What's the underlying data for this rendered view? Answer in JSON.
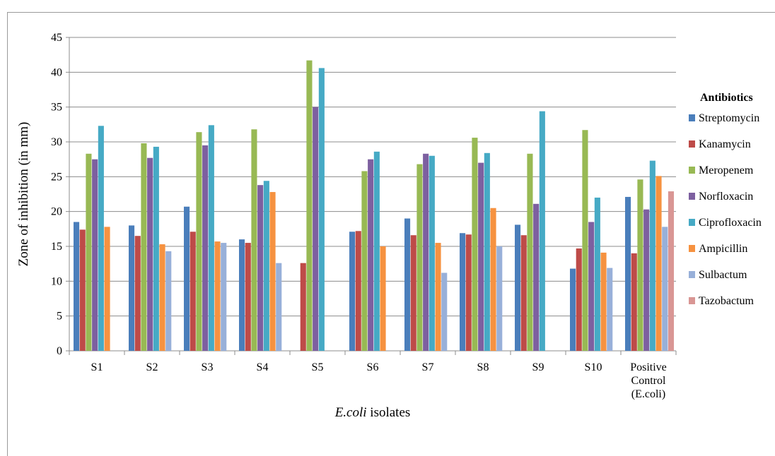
{
  "chart_data": {
    "type": "bar",
    "title": "",
    "ylabel": "Zone of inhibition (in mm)",
    "xlabel_italic": "E.coli",
    "xlabel_rest": " isolates",
    "ylim": [
      0,
      45
    ],
    "ytick_step": 5,
    "grid": true,
    "legend_position": "right",
    "legend_title": "Antibiotics",
    "categories": [
      "S1",
      "S2",
      "S3",
      "S4",
      "S5",
      "S6",
      "S7",
      "S8",
      "S9",
      "S10",
      "Positive\nControl\n(E.coli)"
    ],
    "series": [
      {
        "name": "Streptomycin",
        "color": "#4a7ebb",
        "values": [
          18.5,
          18.0,
          20.7,
          16.0,
          0,
          17.1,
          19.0,
          16.9,
          18.1,
          11.8,
          22.1
        ]
      },
      {
        "name": "Kanamycin",
        "color": "#be4b48",
        "values": [
          17.4,
          16.5,
          17.1,
          15.5,
          12.6,
          17.2,
          16.6,
          16.7,
          16.6,
          14.7,
          14.0
        ]
      },
      {
        "name": "Meropenem",
        "color": "#98b954",
        "values": [
          28.3,
          29.8,
          31.4,
          31.8,
          41.7,
          25.8,
          26.8,
          30.6,
          28.3,
          31.7,
          24.6
        ]
      },
      {
        "name": "Norfloxacin",
        "color": "#7d60a0",
        "values": [
          27.5,
          27.7,
          29.5,
          23.8,
          35.0,
          27.5,
          28.3,
          27.0,
          21.1,
          18.5,
          20.3
        ]
      },
      {
        "name": "Ciprofloxacin",
        "color": "#46aac5",
        "values": [
          32.3,
          29.3,
          32.4,
          24.4,
          40.6,
          28.6,
          28.0,
          28.4,
          34.4,
          22.0,
          27.3
        ]
      },
      {
        "name": "Ampicillin",
        "color": "#f69240",
        "values": [
          17.8,
          15.3,
          15.7,
          22.8,
          0,
          15.0,
          15.5,
          20.5,
          0,
          14.1,
          25.1
        ]
      },
      {
        "name": "Sulbactum",
        "color": "#98b0d9",
        "values": [
          0,
          14.3,
          15.5,
          12.6,
          0,
          0,
          11.2,
          15.0,
          0,
          11.9,
          17.8
        ]
      },
      {
        "name": "Tazobactum",
        "color": "#d99694",
        "values": [
          0,
          0,
          0,
          0,
          0,
          0,
          0,
          0,
          0,
          0,
          22.9
        ]
      }
    ]
  }
}
